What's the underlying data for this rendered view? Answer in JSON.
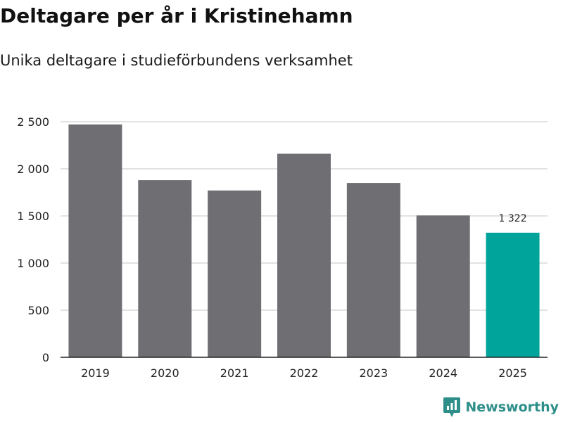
{
  "header": {
    "title": "Deltagare per år i Kristinehamn",
    "subtitle": "Unika deltagare i studieförbundens verksamhet"
  },
  "brand": {
    "name": "Newsworthy",
    "logo_icon": "newsworthy-logo-icon"
  },
  "colors": {
    "bar": "#6f6e73",
    "highlight": "#00a49a",
    "grid": "#d9d9d9",
    "axis": "#222222",
    "brand": "#2e8f8a"
  },
  "chart_data": {
    "type": "bar",
    "title": "Deltagare per år i Kristinehamn",
    "subtitle": "Unika deltagare i studieförbundens verksamhet",
    "xlabel": "",
    "ylabel": "",
    "categories": [
      "2019",
      "2020",
      "2021",
      "2022",
      "2023",
      "2024",
      "2025"
    ],
    "values": [
      2470,
      1880,
      1770,
      2160,
      1850,
      1505,
      1322
    ],
    "highlight_index": 6,
    "data_labels": [
      {
        "index": 6,
        "text": "1 322"
      }
    ],
    "ylim": [
      0,
      2500
    ],
    "yticks": [
      {
        "value": 0,
        "label": "0"
      },
      {
        "value": 500,
        "label": "500"
      },
      {
        "value": 1000,
        "label": "1 000"
      },
      {
        "value": 1500,
        "label": "1 500"
      },
      {
        "value": 2000,
        "label": "2 000"
      },
      {
        "value": 2500,
        "label": "2 500"
      }
    ],
    "grid": true,
    "legend": "none"
  }
}
